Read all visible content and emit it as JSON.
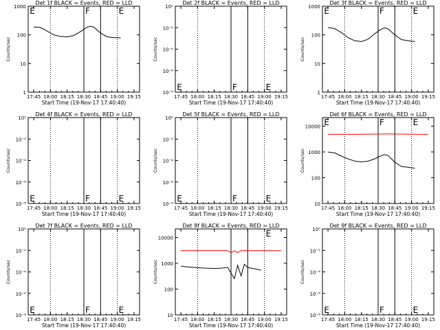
{
  "chart_data": [
    {
      "type": "line",
      "title": "Det 1f BLACK = Events, RED = LLD",
      "xlabel": "Start Time (19-Nov-17 17:40:40)",
      "ylabel": "Counts/sec",
      "xlim": [
        17.667,
        19.333
      ],
      "x_ticks": [
        "17:45",
        "18:00",
        "18:15",
        "18:30",
        "18:45",
        "19:00",
        "19:15"
      ],
      "y_scale": "log",
      "y_ticks": [
        "1",
        "10",
        "100",
        "1000"
      ],
      "ylim": [
        1,
        1000
      ],
      "dotted_lines": [
        18.0,
        19.0
      ],
      "solid_lines": [
        18.5,
        18.75
      ],
      "markers": [
        {
          "text": "E",
          "x": 17.68,
          "y": 1000
        },
        {
          "text": "F",
          "x": 18.51,
          "y": 1000
        },
        {
          "text": "E",
          "x": 19.01,
          "y": 1000
        }
      ],
      "series": [
        {
          "color": "#000000",
          "x": [
            17.75,
            17.85,
            17.95,
            18.05,
            18.15,
            18.25,
            18.35,
            18.45,
            18.55,
            18.6,
            18.65,
            18.75,
            18.85,
            18.95,
            19.0,
            19.05
          ],
          "y": [
            190,
            180,
            135,
            100,
            88,
            85,
            95,
            130,
            185,
            200,
            185,
            115,
            85,
            80,
            80,
            78
          ]
        }
      ]
    },
    {
      "type": "line",
      "title": "Det 2f BLACK = Events, RED = LLD",
      "xlabel": "Start Time (19-Nov-17 17:40:40)",
      "ylabel": "Counts/sec",
      "xlim": [
        17.667,
        19.333
      ],
      "x_ticks": [
        "17:45",
        "18:00",
        "18:15",
        "18:30",
        "18:45",
        "19:00",
        "19:15"
      ],
      "y_scale": "log",
      "y_ticks": [
        "10⁻⁸",
        "10⁻⁶",
        "10⁻⁴",
        "10⁻²",
        "10⁰"
      ],
      "ylim": [
        1e-09,
        1e-08
      ],
      "dotted_lines": [
        18.0,
        19.0
      ],
      "solid_lines": [
        18.5,
        18.75
      ],
      "markers": [
        {
          "text": "E",
          "x": 17.68,
          "y": 1e-09
        },
        {
          "text": "F",
          "x": 18.51,
          "y": 1e-09
        },
        {
          "text": "E",
          "x": 19.01,
          "y": 1e-09
        }
      ],
      "series": []
    },
    {
      "type": "line",
      "title": "Det 3f BLACK = Events, RED = LLD",
      "xlabel": "Start Time (19-Nov-17 17:40:40)",
      "ylabel": "Counts/sec",
      "xlim": [
        17.667,
        19.333
      ],
      "x_ticks": [
        "17:45",
        "18:00",
        "18:15",
        "18:30",
        "18:45",
        "19:00",
        "19:15"
      ],
      "y_scale": "log",
      "y_ticks": [
        "1",
        "10",
        "100",
        "1000"
      ],
      "ylim": [
        1,
        1000
      ],
      "dotted_lines": [
        18.0,
        19.0
      ],
      "solid_lines": [
        18.5,
        18.75
      ],
      "markers": [
        {
          "text": "E",
          "x": 17.68,
          "y": 1000
        },
        {
          "text": "F",
          "x": 18.51,
          "y": 1000
        },
        {
          "text": "E",
          "x": 19.01,
          "y": 1000
        }
      ],
      "series": [
        {
          "color": "#000000",
          "x": [
            17.75,
            17.85,
            17.95,
            18.05,
            18.15,
            18.25,
            18.35,
            18.45,
            18.55,
            18.6,
            18.65,
            18.75,
            18.85,
            18.95,
            19.0,
            19.05
          ],
          "y": [
            180,
            165,
            120,
            80,
            62,
            58,
            70,
            110,
            160,
            175,
            160,
            100,
            68,
            62,
            60,
            58
          ]
        }
      ]
    },
    {
      "type": "line",
      "title": "Det 4f BLACK = Events, RED = LLD",
      "xlabel": "Start Time (19-Nov-17 17:40:40)",
      "ylabel": "Counts/sec",
      "xlim": [
        17.667,
        19.333
      ],
      "x_ticks": [
        "17:45",
        "18:00",
        "18:15",
        "18:30",
        "18:45",
        "19:00",
        "19:15"
      ],
      "y_scale": "log",
      "y_ticks": [
        "10⁻⁸",
        "10⁻⁶",
        "10⁻⁴",
        "10⁻²",
        "10⁰"
      ],
      "ylim": [
        1e-09,
        1e-08
      ],
      "dotted_lines": [
        18.0,
        19.0
      ],
      "solid_lines": [
        18.5,
        18.75
      ],
      "markers": [
        {
          "text": "E",
          "x": 17.68,
          "y": 1e-09
        },
        {
          "text": "F",
          "x": 18.51,
          "y": 1e-09
        },
        {
          "text": "E",
          "x": 19.01,
          "y": 1e-09
        }
      ],
      "series": []
    },
    {
      "type": "line",
      "title": "Det 5f BLACK = Events, RED = LLD",
      "xlabel": "Start Time (19-Nov-17 17:40:40)",
      "ylabel": "Counts/sec",
      "xlim": [
        17.667,
        19.333
      ],
      "x_ticks": [
        "17:45",
        "18:00",
        "18:15",
        "18:30",
        "18:45",
        "19:00",
        "19:15"
      ],
      "y_scale": "log",
      "y_ticks": [
        "10⁻⁸",
        "10⁻⁶",
        "10⁻⁴",
        "10⁻²",
        "10⁰"
      ],
      "ylim": [
        1e-09,
        1e-08
      ],
      "dotted_lines": [
        18.0,
        19.0
      ],
      "solid_lines": [
        18.5,
        18.75
      ],
      "markers": [
        {
          "text": "E",
          "x": 17.68,
          "y": 1e-09
        },
        {
          "text": "F",
          "x": 18.51,
          "y": 1e-09
        },
        {
          "text": "E",
          "x": 19.01,
          "y": 1e-09
        }
      ],
      "series": []
    },
    {
      "type": "line",
      "title": "Det 6f BLACK = Events, RED = LLD",
      "xlabel": "Start Time (19-Nov-17 17:40:40)",
      "ylabel": "Counts/sec",
      "xlim": [
        17.667,
        19.333
      ],
      "x_ticks": [
        "17:45",
        "18:00",
        "18:15",
        "18:30",
        "18:45",
        "19:00",
        "19:15"
      ],
      "y_scale": "log",
      "y_ticks": [
        "10",
        "100",
        "1000",
        "10000"
      ],
      "ylim": [
        10,
        12000
      ],
      "dotted_lines": [
        18.0,
        19.0
      ],
      "solid_lines": [
        18.5,
        18.75
      ],
      "markers": [
        {
          "text": "E",
          "x": 17.68,
          "y": 12000
        },
        {
          "text": "F",
          "x": 18.51,
          "y": 12000
        },
        {
          "text": "E",
          "x": 19.01,
          "y": 12000
        }
      ],
      "series": [
        {
          "color": "#ff0000",
          "x": [
            17.75,
            18.0,
            18.25,
            18.5,
            18.75,
            19.0,
            19.25
          ],
          "y": [
            3000,
            3000,
            3000,
            3100,
            3100,
            3000,
            3000
          ]
        },
        {
          "color": "#000000",
          "x": [
            17.75,
            17.85,
            17.95,
            18.05,
            18.15,
            18.25,
            18.35,
            18.45,
            18.55,
            18.6,
            18.65,
            18.75,
            18.85,
            18.95,
            19.0,
            19.05
          ],
          "y": [
            700,
            650,
            500,
            400,
            330,
            310,
            330,
            400,
            520,
            560,
            520,
            300,
            210,
            200,
            190,
            185
          ]
        }
      ]
    },
    {
      "type": "line",
      "title": "Det 7f BLACK = Events, RED = LLD",
      "xlabel": "Start Time (19-Nov-17 17:40:40)",
      "ylabel": "Counts/sec",
      "xlim": [
        17.667,
        19.333
      ],
      "x_ticks": [
        "17:45",
        "18:00",
        "18:15",
        "18:30",
        "18:45",
        "19:00",
        "19:15"
      ],
      "y_scale": "log",
      "y_ticks": [
        "10⁻⁸",
        "10⁻⁶",
        "10⁻⁴",
        "10⁻²",
        "10⁰"
      ],
      "ylim": [
        1e-09,
        1e-08
      ],
      "dotted_lines": [
        18.0,
        19.0
      ],
      "solid_lines": [
        18.5,
        18.75
      ],
      "markers": [
        {
          "text": "E",
          "x": 17.68,
          "y": 1e-09
        },
        {
          "text": "F",
          "x": 18.51,
          "y": 1e-09
        },
        {
          "text": "E",
          "x": 19.01,
          "y": 1e-09
        }
      ],
      "series": []
    },
    {
      "type": "line",
      "title": "Det 8f BLACK = Events, RED = LLD",
      "xlabel": "Start Time (19-Nov-17 17:40:40)",
      "ylabel": "Counts/sec",
      "xlim": [
        17.667,
        19.333
      ],
      "x_ticks": [
        "17:45",
        "18:00",
        "18:15",
        "18:30",
        "18:45",
        "19:00",
        "19:15"
      ],
      "y_scale": "log",
      "y_ticks": [
        "10",
        "100",
        "1000",
        "10000"
      ],
      "ylim": [
        10,
        12000
      ],
      "dotted_lines": [
        18.0,
        19.0
      ],
      "solid_lines": [
        18.5,
        18.75
      ],
      "markers": [
        {
          "text": "E",
          "x": 19.01,
          "y": 12000
        }
      ],
      "series": [
        {
          "color": "#ff0000",
          "x": [
            17.75,
            18.0,
            18.25,
            18.45,
            18.5,
            18.55,
            18.6,
            18.65,
            18.75,
            19.0,
            19.25
          ],
          "y": [
            2000,
            2000,
            2000,
            2000,
            1700,
            2000,
            1700,
            2000,
            2000,
            2000,
            2000
          ]
        },
        {
          "color": "#000000",
          "x": [
            17.75,
            17.85,
            17.95,
            18.05,
            18.15,
            18.25,
            18.35,
            18.45,
            18.55,
            18.6,
            18.65,
            18.7,
            18.75,
            18.85,
            18.95
          ],
          "y": [
            550,
            520,
            500,
            480,
            470,
            460,
            470,
            500,
            200,
            600,
            250,
            650,
            500,
            450,
            400
          ]
        }
      ]
    },
    {
      "type": "line",
      "title": "Det 9f BLACK = Events, RED = LLD",
      "xlabel": "Start Time (19-Nov-17 17:40:40)",
      "ylabel": "Counts/sec",
      "xlim": [
        17.667,
        19.333
      ],
      "x_ticks": [
        "17:45",
        "18:00",
        "18:15",
        "18:30",
        "18:45",
        "19:00",
        "19:15"
      ],
      "y_scale": "log",
      "y_ticks": [
        "10⁻⁸",
        "10⁻⁶",
        "10⁻⁴",
        "10⁻²",
        "10⁰"
      ],
      "ylim": [
        1e-09,
        1e-08
      ],
      "dotted_lines": [
        18.0,
        19.0
      ],
      "solid_lines": [
        18.5,
        18.75
      ],
      "markers": [
        {
          "text": "E",
          "x": 17.68,
          "y": 1e-09
        },
        {
          "text": "F",
          "x": 18.51,
          "y": 1e-09
        },
        {
          "text": "E",
          "x": 19.01,
          "y": 1e-09
        }
      ],
      "series": []
    }
  ]
}
